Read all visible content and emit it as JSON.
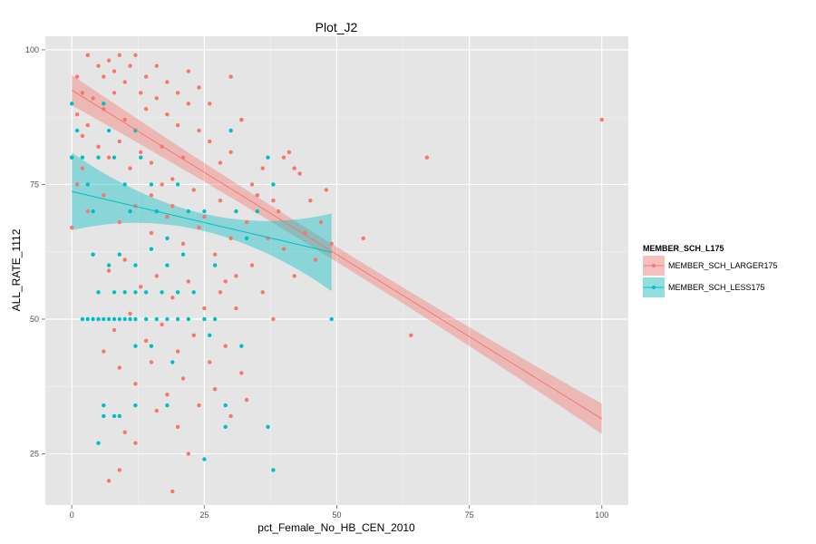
{
  "chart_data": {
    "type": "scatter",
    "title": "Plot_J2",
    "xlabel": "pct_Female_No_HB_CEN_2010",
    "ylabel": "ALL_RATE_1112",
    "xlim": [
      -5,
      105
    ],
    "ylim": [
      15.5,
      102.5
    ],
    "x_ticks": [
      0,
      25,
      50,
      75,
      100
    ],
    "y_ticks": [
      25,
      50,
      75,
      100
    ],
    "x_tick_labels": [
      "0",
      "25",
      "50",
      "75",
      "100"
    ],
    "y_tick_labels": [
      "25",
      "50",
      "75",
      "100"
    ],
    "grid": true,
    "legend": {
      "title": "MEMBER_SCH_L175",
      "position": "right"
    },
    "series": [
      {
        "name": "MEMBER_SCH_LARGER175",
        "color": "#F8766D",
        "points": [
          [
            3,
            99
          ],
          [
            5,
            97
          ],
          [
            6,
            95
          ],
          [
            7,
            98
          ],
          [
            8,
            96
          ],
          [
            9,
            99
          ],
          [
            10,
            94
          ],
          [
            11,
            97
          ],
          [
            12,
            99
          ],
          [
            13,
            92
          ],
          [
            4,
            91
          ],
          [
            6,
            89
          ],
          [
            8,
            92
          ],
          [
            10,
            87
          ],
          [
            12,
            85
          ],
          [
            14,
            89
          ],
          [
            16,
            91
          ],
          [
            18,
            88
          ],
          [
            20,
            86
          ],
          [
            22,
            90
          ],
          [
            2,
            84
          ],
          [
            5,
            82
          ],
          [
            7,
            80
          ],
          [
            9,
            83
          ],
          [
            11,
            78
          ],
          [
            13,
            81
          ],
          [
            15,
            79
          ],
          [
            17,
            82
          ],
          [
            19,
            76
          ],
          [
            21,
            80
          ],
          [
            24,
            85
          ],
          [
            26,
            83
          ],
          [
            28,
            79
          ],
          [
            30,
            81
          ],
          [
            32,
            87
          ],
          [
            34,
            75
          ],
          [
            36,
            78
          ],
          [
            38,
            72
          ],
          [
            40,
            80
          ],
          [
            42,
            78
          ],
          [
            3,
            70
          ],
          [
            6,
            73
          ],
          [
            9,
            68
          ],
          [
            12,
            71
          ],
          [
            15,
            66
          ],
          [
            18,
            69
          ],
          [
            21,
            64
          ],
          [
            24,
            67
          ],
          [
            27,
            62
          ],
          [
            30,
            65
          ],
          [
            4,
            62
          ],
          [
            7,
            59
          ],
          [
            10,
            61
          ],
          [
            13,
            56
          ],
          [
            16,
            58
          ],
          [
            19,
            54
          ],
          [
            22,
            57
          ],
          [
            25,
            52
          ],
          [
            28,
            55
          ],
          [
            31,
            58
          ],
          [
            5,
            50
          ],
          [
            8,
            48
          ],
          [
            11,
            51
          ],
          [
            14,
            46
          ],
          [
            17,
            49
          ],
          [
            20,
            44
          ],
          [
            23,
            47
          ],
          [
            26,
            42
          ],
          [
            29,
            45
          ],
          [
            32,
            40
          ],
          [
            6,
            44
          ],
          [
            9,
            41
          ],
          [
            12,
            38
          ],
          [
            15,
            42
          ],
          [
            18,
            36
          ],
          [
            21,
            39
          ],
          [
            24,
            34
          ],
          [
            27,
            37
          ],
          [
            30,
            32
          ],
          [
            33,
            35
          ],
          [
            12,
            27
          ],
          [
            9,
            22
          ],
          [
            7,
            20
          ],
          [
            19,
            18
          ],
          [
            20,
            30
          ],
          [
            16,
            33
          ],
          [
            10,
            29
          ],
          [
            22,
            25
          ],
          [
            1,
            95
          ],
          [
            2,
            92
          ],
          [
            1,
            88
          ],
          [
            0,
            80
          ],
          [
            0,
            67
          ],
          [
            1,
            75
          ],
          [
            2,
            78
          ],
          [
            3,
            86
          ],
          [
            14,
            95
          ],
          [
            16,
            97
          ],
          [
            18,
            94
          ],
          [
            20,
            92
          ],
          [
            22,
            96
          ],
          [
            24,
            93
          ],
          [
            26,
            90
          ],
          [
            30,
            95
          ],
          [
            32,
            87
          ],
          [
            15,
            73
          ],
          [
            17,
            75
          ],
          [
            19,
            71
          ],
          [
            23,
            74
          ],
          [
            25,
            69
          ],
          [
            28,
            72
          ],
          [
            33,
            68
          ],
          [
            35,
            73
          ],
          [
            37,
            65
          ],
          [
            39,
            70
          ],
          [
            29,
            57
          ],
          [
            31,
            52
          ],
          [
            34,
            60
          ],
          [
            36,
            55
          ],
          [
            38,
            50
          ],
          [
            40,
            63
          ],
          [
            42,
            58
          ],
          [
            44,
            66
          ],
          [
            46,
            61
          ],
          [
            41,
            81
          ],
          [
            43,
            77
          ],
          [
            45,
            72
          ],
          [
            47,
            68
          ],
          [
            48,
            74
          ],
          [
            49,
            64
          ],
          [
            55,
            65
          ],
          [
            64,
            47
          ],
          [
            67,
            80
          ],
          [
            100,
            87
          ]
        ],
        "trend": {
          "x": [
            0,
            100
          ],
          "y": [
            92.5,
            31.5
          ],
          "ci_halfwidth": [
            1.4,
            2.8
          ]
        }
      },
      {
        "name": "MEMBER_SCH_LESS175",
        "color": "#00BFC4",
        "points": [
          [
            0,
            90
          ],
          [
            0,
            80
          ],
          [
            1,
            85
          ],
          [
            2,
            80
          ],
          [
            3,
            75
          ],
          [
            4,
            70
          ],
          [
            5,
            80
          ],
          [
            6,
            90
          ],
          [
            7,
            85
          ],
          [
            8,
            80
          ],
          [
            10,
            75
          ],
          [
            11,
            70
          ],
          [
            12,
            85
          ],
          [
            13,
            80
          ],
          [
            15,
            75
          ],
          [
            16,
            70
          ],
          [
            18,
            65
          ],
          [
            20,
            75
          ],
          [
            22,
            70
          ],
          [
            25,
            70
          ],
          [
            27,
            60
          ],
          [
            30,
            85
          ],
          [
            31,
            70
          ],
          [
            33,
            65
          ],
          [
            35,
            70
          ],
          [
            37,
            80
          ],
          [
            38,
            75
          ],
          [
            2,
            50
          ],
          [
            3,
            50
          ],
          [
            4,
            50
          ],
          [
            5,
            50
          ],
          [
            6,
            50
          ],
          [
            7,
            50
          ],
          [
            8,
            50
          ],
          [
            9,
            50
          ],
          [
            10,
            50
          ],
          [
            11,
            50
          ],
          [
            12,
            50
          ],
          [
            14,
            50
          ],
          [
            16,
            50
          ],
          [
            18,
            50
          ],
          [
            20,
            50
          ],
          [
            22,
            50
          ],
          [
            25,
            50
          ],
          [
            27,
            50
          ],
          [
            49,
            50
          ],
          [
            5,
            55
          ],
          [
            8,
            55
          ],
          [
            10,
            55
          ],
          [
            12,
            55
          ],
          [
            14,
            55
          ],
          [
            17,
            55
          ],
          [
            20,
            55
          ],
          [
            23,
            55
          ],
          [
            4,
            62
          ],
          [
            7,
            60
          ],
          [
            9,
            62
          ],
          [
            12,
            60
          ],
          [
            15,
            63
          ],
          [
            18,
            60
          ],
          [
            21,
            62
          ],
          [
            12,
            45
          ],
          [
            15,
            45
          ],
          [
            19,
            42
          ],
          [
            26,
            47
          ],
          [
            32,
            45
          ],
          [
            6,
            34
          ],
          [
            6,
            32
          ],
          [
            8,
            32
          ],
          [
            9,
            32
          ],
          [
            12,
            34
          ],
          [
            18,
            34
          ],
          [
            29,
            34
          ],
          [
            5,
            27
          ],
          [
            25,
            24
          ],
          [
            37,
            30
          ],
          [
            38,
            22
          ],
          [
            29,
            30
          ]
        ],
        "trend": {
          "x": [
            0,
            49
          ],
          "y": [
            73.7,
            62.4
          ],
          "ci_halfwidth": [
            1.6,
            7.2
          ]
        }
      }
    ]
  },
  "colors": {
    "panel_background": "#E5E5E5",
    "grid_major": "#FFFFFF",
    "grid_minor": "#F2F2F2"
  }
}
